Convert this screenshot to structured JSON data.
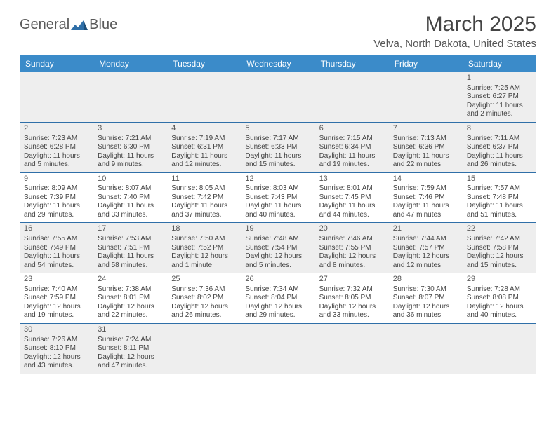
{
  "brand": {
    "part1": "General",
    "part2": "Blue"
  },
  "title": "March 2025",
  "location": "Velva, North Dakota, United States",
  "colors": {
    "header_bg": "#3b8bc9",
    "header_text": "#ffffff",
    "rule": "#2f6fa8",
    "shade": "#eeeeee",
    "text": "#444444",
    "logo_gray": "#5a5a5a",
    "logo_blue": "#2f6fa8"
  },
  "day_names": [
    "Sunday",
    "Monday",
    "Tuesday",
    "Wednesday",
    "Thursday",
    "Friday",
    "Saturday"
  ],
  "weeks": [
    [
      null,
      null,
      null,
      null,
      null,
      null,
      {
        "n": "1",
        "sunrise": "7:25 AM",
        "sunset": "6:27 PM",
        "daylight": "11 hours and 2 minutes."
      }
    ],
    [
      {
        "n": "2",
        "sunrise": "7:23 AM",
        "sunset": "6:28 PM",
        "daylight": "11 hours and 5 minutes."
      },
      {
        "n": "3",
        "sunrise": "7:21 AM",
        "sunset": "6:30 PM",
        "daylight": "11 hours and 9 minutes."
      },
      {
        "n": "4",
        "sunrise": "7:19 AM",
        "sunset": "6:31 PM",
        "daylight": "11 hours and 12 minutes."
      },
      {
        "n": "5",
        "sunrise": "7:17 AM",
        "sunset": "6:33 PM",
        "daylight": "11 hours and 15 minutes."
      },
      {
        "n": "6",
        "sunrise": "7:15 AM",
        "sunset": "6:34 PM",
        "daylight": "11 hours and 19 minutes."
      },
      {
        "n": "7",
        "sunrise": "7:13 AM",
        "sunset": "6:36 PM",
        "daylight": "11 hours and 22 minutes."
      },
      {
        "n": "8",
        "sunrise": "7:11 AM",
        "sunset": "6:37 PM",
        "daylight": "11 hours and 26 minutes."
      }
    ],
    [
      {
        "n": "9",
        "sunrise": "8:09 AM",
        "sunset": "7:39 PM",
        "daylight": "11 hours and 29 minutes."
      },
      {
        "n": "10",
        "sunrise": "8:07 AM",
        "sunset": "7:40 PM",
        "daylight": "11 hours and 33 minutes."
      },
      {
        "n": "11",
        "sunrise": "8:05 AM",
        "sunset": "7:42 PM",
        "daylight": "11 hours and 37 minutes."
      },
      {
        "n": "12",
        "sunrise": "8:03 AM",
        "sunset": "7:43 PM",
        "daylight": "11 hours and 40 minutes."
      },
      {
        "n": "13",
        "sunrise": "8:01 AM",
        "sunset": "7:45 PM",
        "daylight": "11 hours and 44 minutes."
      },
      {
        "n": "14",
        "sunrise": "7:59 AM",
        "sunset": "7:46 PM",
        "daylight": "11 hours and 47 minutes."
      },
      {
        "n": "15",
        "sunrise": "7:57 AM",
        "sunset": "7:48 PM",
        "daylight": "11 hours and 51 minutes."
      }
    ],
    [
      {
        "n": "16",
        "sunrise": "7:55 AM",
        "sunset": "7:49 PM",
        "daylight": "11 hours and 54 minutes."
      },
      {
        "n": "17",
        "sunrise": "7:53 AM",
        "sunset": "7:51 PM",
        "daylight": "11 hours and 58 minutes."
      },
      {
        "n": "18",
        "sunrise": "7:50 AM",
        "sunset": "7:52 PM",
        "daylight": "12 hours and 1 minute."
      },
      {
        "n": "19",
        "sunrise": "7:48 AM",
        "sunset": "7:54 PM",
        "daylight": "12 hours and 5 minutes."
      },
      {
        "n": "20",
        "sunrise": "7:46 AM",
        "sunset": "7:55 PM",
        "daylight": "12 hours and 8 minutes."
      },
      {
        "n": "21",
        "sunrise": "7:44 AM",
        "sunset": "7:57 PM",
        "daylight": "12 hours and 12 minutes."
      },
      {
        "n": "22",
        "sunrise": "7:42 AM",
        "sunset": "7:58 PM",
        "daylight": "12 hours and 15 minutes."
      }
    ],
    [
      {
        "n": "23",
        "sunrise": "7:40 AM",
        "sunset": "7:59 PM",
        "daylight": "12 hours and 19 minutes."
      },
      {
        "n": "24",
        "sunrise": "7:38 AM",
        "sunset": "8:01 PM",
        "daylight": "12 hours and 22 minutes."
      },
      {
        "n": "25",
        "sunrise": "7:36 AM",
        "sunset": "8:02 PM",
        "daylight": "12 hours and 26 minutes."
      },
      {
        "n": "26",
        "sunrise": "7:34 AM",
        "sunset": "8:04 PM",
        "daylight": "12 hours and 29 minutes."
      },
      {
        "n": "27",
        "sunrise": "7:32 AM",
        "sunset": "8:05 PM",
        "daylight": "12 hours and 33 minutes."
      },
      {
        "n": "28",
        "sunrise": "7:30 AM",
        "sunset": "8:07 PM",
        "daylight": "12 hours and 36 minutes."
      },
      {
        "n": "29",
        "sunrise": "7:28 AM",
        "sunset": "8:08 PM",
        "daylight": "12 hours and 40 minutes."
      }
    ],
    [
      {
        "n": "30",
        "sunrise": "7:26 AM",
        "sunset": "8:10 PM",
        "daylight": "12 hours and 43 minutes."
      },
      {
        "n": "31",
        "sunrise": "7:24 AM",
        "sunset": "8:11 PM",
        "daylight": "12 hours and 47 minutes."
      },
      null,
      null,
      null,
      null,
      null
    ]
  ],
  "labels": {
    "sunrise": "Sunrise: ",
    "sunset": "Sunset: ",
    "daylight": "Daylight: "
  }
}
